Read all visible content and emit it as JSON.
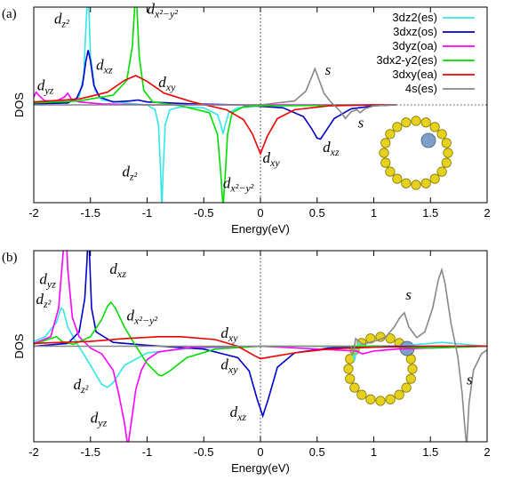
{
  "chart_data": [
    {
      "type": "line",
      "label": "(a)",
      "x_label": "Energy(eV)",
      "y_label": "DOS",
      "xlim": [
        -2,
        2
      ],
      "xticks": [
        -2,
        -1.5,
        -1,
        -0.5,
        0,
        0.5,
        1,
        1.5,
        2
      ],
      "ylim": [
        -10,
        10
      ],
      "zero_line_x": true,
      "zero_line_y": true,
      "legend": "upper right",
      "series": [
        {
          "name": "3dz2(es)",
          "color": "#33e6e6",
          "x": [
            -2,
            -1.7,
            -1.6,
            -1.56,
            -1.54,
            -1.52,
            -1.5,
            -1.46,
            -1.4,
            -1.2,
            -1,
            -0.93,
            -0.9,
            -0.88,
            -0.87,
            -0.86,
            -0.84,
            -0.8,
            -0.7,
            -0.5,
            -0.38,
            -0.35,
            -0.33,
            -0.31,
            -0.28,
            -0.2,
            0,
            0.5,
            1.2
          ],
          "values": [
            0.2,
            0.3,
            0.8,
            3,
            8,
            12,
            5,
            1.5,
            0.5,
            0.2,
            0,
            -0.5,
            -2,
            -7,
            -10.5,
            -7,
            -2,
            -0.5,
            -0.2,
            -0.3,
            -1,
            -2,
            -3,
            -2,
            -0.8,
            -0.3,
            -0.1,
            0,
            0
          ]
        },
        {
          "name": "3dxz(os)",
          "color": "#0000cc",
          "x": [
            -2,
            -1.7,
            -1.62,
            -1.57,
            -1.54,
            -1.52,
            -1.5,
            -1.47,
            -1.42,
            -1.3,
            -1.15,
            -1.08,
            -1,
            -0.6,
            -0.2,
            0.2,
            0.38,
            0.45,
            0.5,
            0.53,
            0.57,
            0.65,
            0.8,
            1,
            1.2
          ],
          "values": [
            0.1,
            0.2,
            0.7,
            2,
            4.5,
            5.6,
            4.5,
            2,
            0.8,
            0.3,
            0.4,
            0.5,
            0.3,
            0.1,
            0,
            -0.3,
            -1.2,
            -2.4,
            -3.4,
            -3.5,
            -2.8,
            -1.4,
            -0.4,
            -0.1,
            0
          ]
        },
        {
          "name": "3dyz(oa)",
          "color": "#ff00ff",
          "x": [
            -2,
            -1.98,
            -1.95,
            -1.9,
            -1.8,
            -1.73,
            -1.7,
            -1.67,
            -1.6,
            -1.4,
            -1,
            0,
            1.2
          ],
          "values": [
            0.8,
            1.3,
            0.9,
            0.4,
            0.4,
            0.8,
            1.2,
            0.6,
            0.3,
            0.1,
            0,
            0,
            0
          ]
        },
        {
          "name": "3dx2-y2(es)",
          "color": "#00dd00",
          "x": [
            -2,
            -1.6,
            -1.3,
            -1.18,
            -1.13,
            -1.11,
            -1.1,
            -1.09,
            -1.07,
            -1.03,
            -0.95,
            -0.7,
            -0.45,
            -0.38,
            -0.35,
            -0.33,
            -0.31,
            -0.29,
            -0.25,
            -0.15,
            0,
            1.2
          ],
          "values": [
            0.2,
            0.4,
            1,
            2.5,
            6,
            10,
            12,
            10,
            5,
            1.5,
            0.3,
            -0.1,
            -0.8,
            -3,
            -7,
            -10.5,
            -7,
            -3,
            -0.8,
            -0.2,
            -0.1,
            0
          ]
        },
        {
          "name": "3dxy(ea)",
          "color": "#ee0000",
          "x": [
            -2,
            -1.6,
            -1.35,
            -1.2,
            -1.1,
            -1,
            -0.85,
            -0.6,
            -0.3,
            -0.15,
            -0.07,
            0,
            0.06,
            0.15,
            0.3,
            0.6,
            1,
            1.2
          ],
          "values": [
            0.3,
            0.6,
            1.3,
            2.5,
            3,
            2.4,
            1.2,
            0.3,
            -0.5,
            -1.5,
            -3,
            -5,
            -3.2,
            -1.4,
            -0.5,
            -0.1,
            0,
            0
          ]
        },
        {
          "name": "4s(es)",
          "color": "#888888",
          "x": [
            -2,
            0,
            0.3,
            0.4,
            0.45,
            0.48,
            0.51,
            0.56,
            0.62,
            0.7,
            0.75,
            0.8,
            0.85,
            0.88,
            0.92,
            1,
            1.2
          ],
          "values": [
            0,
            0,
            0.4,
            1.4,
            2.8,
            3.7,
            2.8,
            1.2,
            0.3,
            -0.6,
            -1.4,
            -0.7,
            -0.5,
            -0.8,
            -0.4,
            -0.1,
            0
          ]
        }
      ],
      "annotations": [
        {
          "text": "d",
          "sub": "z²"
        },
        {
          "text": "d",
          "sub": "x²−y²"
        },
        {
          "text": "d",
          "sub": "yz"
        },
        {
          "text": "d",
          "sub": "xz"
        },
        {
          "text": "d",
          "sub": "xy"
        },
        {
          "text": "s"
        },
        {
          "text": "s"
        },
        {
          "text": "d",
          "sub": "xz"
        },
        {
          "text": "d",
          "sub": "xy"
        },
        {
          "text": "d",
          "sub": "z²"
        },
        {
          "text": "d",
          "sub": "x²−y²"
        }
      ]
    },
    {
      "type": "line",
      "label": "(b)",
      "x_label": "Energy(eV)",
      "y_label": "DOS",
      "xlim": [
        -2,
        2
      ],
      "xticks": [
        -2,
        -1.5,
        -1,
        -0.5,
        0,
        0.5,
        1,
        1.5,
        2
      ],
      "ylim": [
        -10,
        10
      ],
      "zero_line_x": true,
      "zero_line_y": false,
      "series": [
        {
          "color": "#33e6e6",
          "x": [
            -2,
            -1.9,
            -1.8,
            -1.76,
            -1.74,
            -1.7,
            -1.62,
            -1.55,
            -1.45,
            -1.4,
            -1.35,
            -1.3,
            -1.2,
            -1,
            -0.6,
            0,
            0.8,
            0.83,
            0.86,
            0.9,
            1.2,
            1.6,
            2
          ],
          "values": [
            0.5,
            1,
            2.5,
            4,
            3.8,
            2,
            0.3,
            -1,
            -3,
            -4,
            -4.3,
            -3.8,
            -2,
            -0.7,
            -0.2,
            0,
            0,
            -1.5,
            0.3,
            0,
            0,
            0.4,
            0
          ]
        },
        {
          "color": "#0000cc",
          "x": [
            -2,
            -1.7,
            -1.6,
            -1.55,
            -1.53,
            -1.52,
            -1.51,
            -1.49,
            -1.45,
            -1.3,
            -1,
            -0.5,
            -0.2,
            -0.1,
            -0.03,
            0.02,
            0.07,
            0.15,
            0.3,
            0.6,
            1,
            2
          ],
          "values": [
            0,
            0.3,
            1.5,
            5,
            9,
            12,
            10,
            4,
            1.5,
            0.4,
            0.1,
            -0.3,
            -1.2,
            -2.6,
            -5.5,
            -7.3,
            -5.5,
            -2.2,
            -0.7,
            -0.2,
            0,
            0
          ]
        },
        {
          "color": "#ff00ff",
          "x": [
            -2,
            -1.85,
            -1.78,
            -1.74,
            -1.72,
            -1.7,
            -1.66,
            -1.6,
            -1.5,
            -1.4,
            -1.3,
            -1.25,
            -1.2,
            -1.17,
            -1.14,
            -1.1,
            -1.05,
            -1,
            -0.9,
            -0.6,
            0,
            0.85,
            0.9,
            1,
            1.2,
            2
          ],
          "values": [
            0.3,
            1,
            4,
            10,
            13,
            8,
            3,
            1,
            -0.2,
            -0.8,
            -2.5,
            -5,
            -8,
            -10.5,
            -8,
            -4.5,
            -2.5,
            -1.4,
            -0.6,
            -0.1,
            0,
            -0.5,
            -0.8,
            -0.5,
            -0.3,
            0
          ]
        },
        {
          "color": "#00dd00",
          "x": [
            -2,
            -1.85,
            -1.8,
            -1.75,
            -1.65,
            -1.5,
            -1.4,
            -1.35,
            -1.32,
            -1.28,
            -1.2,
            -1.1,
            -1,
            -0.9,
            -0.87,
            -0.8,
            -0.65,
            -0.4,
            0,
            1,
            1.5,
            2
          ],
          "values": [
            0.2,
            0.8,
            1,
            0.5,
            0.2,
            1,
            2.8,
            4.2,
            4.6,
            4,
            2,
            0,
            -1.8,
            -3,
            -3.1,
            -2.6,
            -1.2,
            -0.3,
            0,
            0,
            -0.2,
            0
          ]
        },
        {
          "color": "#ee0000",
          "x": [
            -2,
            -1.5,
            -1.2,
            -0.9,
            -0.7,
            -0.4,
            -0.2,
            -0.05,
            0,
            0.1,
            0.3,
            0.6,
            1,
            1.5,
            2
          ],
          "values": [
            0.3,
            0.5,
            0.8,
            1,
            1,
            0.7,
            0,
            -1,
            -1.3,
            -1.1,
            -0.7,
            -0.3,
            -0.1,
            0,
            0
          ]
        },
        {
          "color": "#888888",
          "x": [
            -2,
            0.7,
            0.8,
            0.82,
            0.84,
            0.9,
            1,
            1.1,
            1.18,
            1.23,
            1.27,
            1.31,
            1.38,
            1.45,
            1.52,
            1.57,
            1.6,
            1.63,
            1.68,
            1.74,
            1.78,
            1.8,
            1.82,
            1.84,
            1.88,
            1.95,
            2
          ],
          "values": [
            0,
            0,
            0,
            -0.8,
            0.8,
            0.2,
            0.5,
            0.9,
            2,
            3,
            3.5,
            2,
            0.9,
            1.5,
            4,
            7,
            8,
            6.5,
            2.5,
            -1,
            -5,
            -8,
            -10.5,
            -6,
            -2.5,
            -0.8,
            -0.4
          ]
        }
      ],
      "annotations": [
        {
          "text": "d",
          "sub": "yz"
        },
        {
          "text": "d",
          "sub": "z²"
        },
        {
          "text": "d",
          "sub": "xz"
        },
        {
          "text": "d",
          "sub": "x²−y²"
        },
        {
          "text": "d",
          "sub": "xy"
        },
        {
          "text": "d",
          "sub": "xy"
        },
        {
          "text": "d",
          "sub": "z²"
        },
        {
          "text": "d",
          "sub": "yz"
        },
        {
          "text": "d",
          "sub": "xz"
        },
        {
          "text": "s"
        },
        {
          "text": "s"
        }
      ]
    }
  ]
}
